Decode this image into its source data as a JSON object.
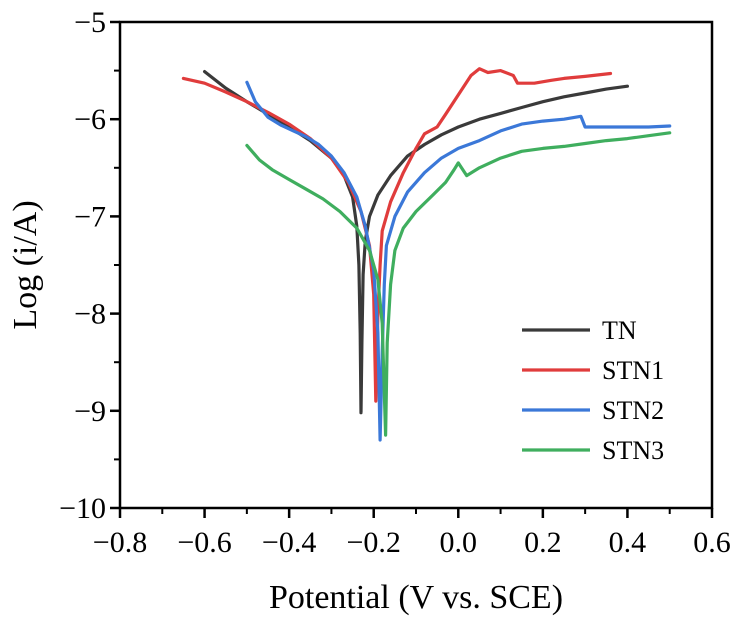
{
  "chart_data": {
    "type": "line",
    "title": "",
    "xlabel": "Potential (V vs. SCE)",
    "ylabel": "Log (i/A)",
    "xlim": [
      -0.8,
      0.6
    ],
    "ylim": [
      -10,
      -5
    ],
    "x_ticks": [
      -0.8,
      -0.6,
      -0.4,
      -0.2,
      0.0,
      0.2,
      0.4,
      0.6
    ],
    "y_ticks": [
      -10,
      -9,
      -8,
      -7,
      -6,
      -5
    ],
    "x_tick_labels": [
      "−0.8",
      "−0.6",
      "−0.4",
      "−0.2",
      "0.0",
      "0.2",
      "0.4",
      "0.6"
    ],
    "y_tick_labels": [
      "−10",
      "−9",
      "−8",
      "−7",
      "−6",
      "−5"
    ],
    "grid": false,
    "legend_position": "bottom-right",
    "series": [
      {
        "name": "TN",
        "color": "#3a3a3a",
        "points": [
          [
            -0.6,
            -5.51
          ],
          [
            -0.55,
            -5.68
          ],
          [
            -0.5,
            -5.82
          ],
          [
            -0.45,
            -5.95
          ],
          [
            -0.4,
            -6.08
          ],
          [
            -0.35,
            -6.22
          ],
          [
            -0.3,
            -6.4
          ],
          [
            -0.27,
            -6.58
          ],
          [
            -0.25,
            -6.8
          ],
          [
            -0.24,
            -7.1
          ],
          [
            -0.235,
            -7.5
          ],
          [
            -0.232,
            -8.2
          ],
          [
            -0.23,
            -9.02
          ],
          [
            -0.228,
            -8.3
          ],
          [
            -0.225,
            -7.6
          ],
          [
            -0.22,
            -7.25
          ],
          [
            -0.21,
            -7.0
          ],
          [
            -0.19,
            -6.78
          ],
          [
            -0.16,
            -6.58
          ],
          [
            -0.12,
            -6.38
          ],
          [
            -0.08,
            -6.26
          ],
          [
            -0.04,
            -6.16
          ],
          [
            0.0,
            -6.08
          ],
          [
            0.05,
            -6.0
          ],
          [
            0.1,
            -5.94
          ],
          [
            0.15,
            -5.88
          ],
          [
            0.2,
            -5.82
          ],
          [
            0.25,
            -5.77
          ],
          [
            0.3,
            -5.73
          ],
          [
            0.35,
            -5.69
          ],
          [
            0.4,
            -5.66
          ]
        ]
      },
      {
        "name": "STN1",
        "color": "#e03c3c",
        "points": [
          [
            -0.65,
            -5.58
          ],
          [
            -0.6,
            -5.63
          ],
          [
            -0.55,
            -5.72
          ],
          [
            -0.5,
            -5.82
          ],
          [
            -0.45,
            -5.93
          ],
          [
            -0.4,
            -6.05
          ],
          [
            -0.35,
            -6.2
          ],
          [
            -0.3,
            -6.4
          ],
          [
            -0.26,
            -6.65
          ],
          [
            -0.23,
            -6.95
          ],
          [
            -0.21,
            -7.3
          ],
          [
            -0.2,
            -7.8
          ],
          [
            -0.195,
            -8.9
          ],
          [
            -0.19,
            -8.0
          ],
          [
            -0.185,
            -7.5
          ],
          [
            -0.18,
            -7.15
          ],
          [
            -0.16,
            -6.85
          ],
          [
            -0.13,
            -6.55
          ],
          [
            -0.1,
            -6.3
          ],
          [
            -0.08,
            -6.15
          ],
          [
            -0.05,
            -6.08
          ],
          [
            -0.03,
            -5.95
          ],
          [
            0.0,
            -5.75
          ],
          [
            0.03,
            -5.55
          ],
          [
            0.05,
            -5.48
          ],
          [
            0.07,
            -5.52
          ],
          [
            0.1,
            -5.5
          ],
          [
            0.13,
            -5.55
          ],
          [
            0.14,
            -5.63
          ],
          [
            0.18,
            -5.63
          ],
          [
            0.22,
            -5.6
          ],
          [
            0.25,
            -5.58
          ],
          [
            0.3,
            -5.56
          ],
          [
            0.36,
            -5.53
          ]
        ]
      },
      {
        "name": "STN2",
        "color": "#3b78d8",
        "points": [
          [
            -0.5,
            -5.62
          ],
          [
            -0.48,
            -5.82
          ],
          [
            -0.45,
            -5.98
          ],
          [
            -0.42,
            -6.06
          ],
          [
            -0.39,
            -6.12
          ],
          [
            -0.36,
            -6.18
          ],
          [
            -0.33,
            -6.26
          ],
          [
            -0.3,
            -6.38
          ],
          [
            -0.27,
            -6.55
          ],
          [
            -0.24,
            -6.8
          ],
          [
            -0.22,
            -7.1
          ],
          [
            -0.2,
            -7.55
          ],
          [
            -0.19,
            -8.2
          ],
          [
            -0.185,
            -9.3
          ],
          [
            -0.18,
            -8.4
          ],
          [
            -0.175,
            -7.7
          ],
          [
            -0.17,
            -7.3
          ],
          [
            -0.15,
            -7.0
          ],
          [
            -0.12,
            -6.75
          ],
          [
            -0.08,
            -6.55
          ],
          [
            -0.04,
            -6.4
          ],
          [
            0.0,
            -6.3
          ],
          [
            0.05,
            -6.22
          ],
          [
            0.1,
            -6.12
          ],
          [
            0.15,
            -6.05
          ],
          [
            0.2,
            -6.02
          ],
          [
            0.25,
            -6.0
          ],
          [
            0.29,
            -5.97
          ],
          [
            0.3,
            -6.08
          ],
          [
            0.35,
            -6.08
          ],
          [
            0.4,
            -6.08
          ],
          [
            0.45,
            -6.08
          ],
          [
            0.5,
            -6.07
          ]
        ]
      },
      {
        "name": "STN3",
        "color": "#3fae5e",
        "points": [
          [
            -0.5,
            -6.27
          ],
          [
            -0.47,
            -6.42
          ],
          [
            -0.44,
            -6.52
          ],
          [
            -0.4,
            -6.62
          ],
          [
            -0.36,
            -6.72
          ],
          [
            -0.32,
            -6.82
          ],
          [
            -0.28,
            -6.95
          ],
          [
            -0.24,
            -7.12
          ],
          [
            -0.21,
            -7.35
          ],
          [
            -0.19,
            -7.65
          ],
          [
            -0.18,
            -8.1
          ],
          [
            -0.172,
            -9.25
          ],
          [
            -0.168,
            -8.3
          ],
          [
            -0.16,
            -7.7
          ],
          [
            -0.15,
            -7.35
          ],
          [
            -0.13,
            -7.12
          ],
          [
            -0.1,
            -6.95
          ],
          [
            -0.06,
            -6.78
          ],
          [
            -0.03,
            -6.65
          ],
          [
            -0.01,
            -6.52
          ],
          [
            0.0,
            -6.45
          ],
          [
            0.02,
            -6.58
          ],
          [
            0.05,
            -6.5
          ],
          [
            0.1,
            -6.4
          ],
          [
            0.15,
            -6.33
          ],
          [
            0.2,
            -6.3
          ],
          [
            0.25,
            -6.28
          ],
          [
            0.3,
            -6.25
          ],
          [
            0.35,
            -6.22
          ],
          [
            0.4,
            -6.2
          ],
          [
            0.45,
            -6.17
          ],
          [
            0.5,
            -6.14
          ]
        ]
      }
    ]
  }
}
